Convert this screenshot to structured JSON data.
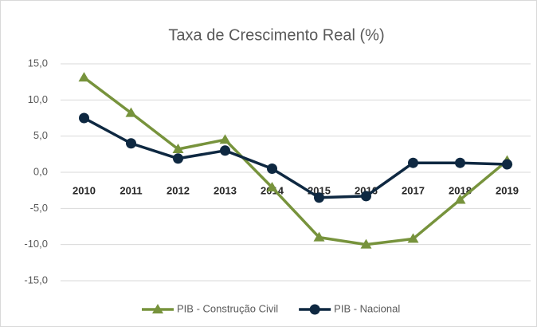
{
  "chart_data": {
    "type": "line",
    "title": "Taxa de Crescimento Real (%)",
    "categories": [
      "2010",
      "2011",
      "2012",
      "2013",
      "2014",
      "2015",
      "2016",
      "2017",
      "2018",
      "2019"
    ],
    "series": [
      {
        "name": "PIB - Construção Civil",
        "color": "#77933c",
        "marker": "triangle",
        "values": [
          13.1,
          8.2,
          3.2,
          4.5,
          -2.1,
          -9.0,
          -10.0,
          -9.2,
          -3.8,
          1.6
        ]
      },
      {
        "name": "PIB - Nacional",
        "color": "#0e2841",
        "marker": "circle",
        "values": [
          7.5,
          4.0,
          1.9,
          3.0,
          0.5,
          -3.5,
          -3.3,
          1.3,
          1.3,
          1.1
        ]
      }
    ],
    "ylim": [
      -15,
      15
    ],
    "yticks": [
      {
        "value": -15,
        "label": "-15,0"
      },
      {
        "value": -10,
        "label": "-10,0"
      },
      {
        "value": -5,
        "label": "-5,0"
      },
      {
        "value": 0,
        "label": "0,0"
      },
      {
        "value": 5,
        "label": "5,0"
      },
      {
        "value": 10,
        "label": "10,0"
      },
      {
        "value": 15,
        "label": "15,0"
      }
    ],
    "grid": true,
    "legend": "bottom"
  }
}
